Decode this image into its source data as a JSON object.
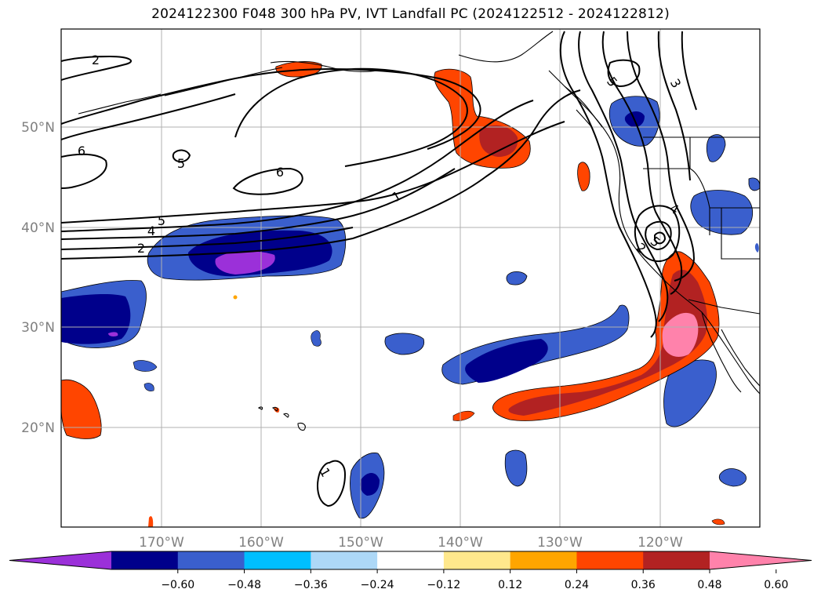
{
  "title": "2024122300 F048 300 hPa PV, IVT Landfall PC (2024122512 - 2024122812)",
  "map": {
    "lat_labels": [
      "50°N",
      "40°N",
      "30°N",
      "20°N"
    ],
    "lon_labels": [
      "170°W",
      "160°W",
      "150°W",
      "140°W",
      "130°W",
      "120°W"
    ],
    "contour_labels": [
      "2",
      "6",
      "5",
      "5",
      "4",
      "2",
      "6",
      "1",
      "5",
      "3",
      "4",
      "2",
      "5",
      "1"
    ]
  },
  "colorbar": {
    "ticks": [
      "−0.60",
      "−0.48",
      "−0.36",
      "−0.24",
      "−0.12",
      "0.12",
      "0.24",
      "0.36",
      "0.48",
      "0.60"
    ],
    "colors": [
      "#9b30d9",
      "#00008b",
      "#3a5fcd",
      "#00bfff",
      "#add8f7",
      "#ffffff",
      "#ffe88c",
      "#ffa500",
      "#ff4500",
      "#b22222",
      "#ff82ab"
    ]
  }
}
